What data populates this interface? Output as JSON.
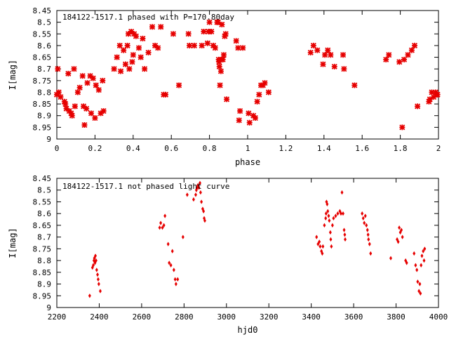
{
  "chart_data": [
    {
      "type": "scatter",
      "title": "184122-1517.1 phased with P=170.80day",
      "xlabel": "phase",
      "ylabel": "I[mag]",
      "xlim": [
        0,
        2
      ],
      "ylim": [
        8.45,
        9.0
      ],
      "y_inverted": true,
      "grid": false,
      "legend": "none",
      "marker": "star",
      "color": "#e60000",
      "xticks": [
        "0",
        "0.2",
        "0.4",
        "0.6",
        "0.8",
        "1",
        "1.2",
        "1.4",
        "1.6",
        "1.8",
        "2"
      ],
      "yticks": [
        "8.45",
        "8.5",
        "8.55",
        "8.6",
        "8.65",
        "8.7",
        "8.75",
        "8.8",
        "8.85",
        "8.9",
        "8.95",
        "9"
      ],
      "points": [
        [
          0.0,
          8.81
        ],
        [
          0.005,
          8.7
        ],
        [
          0.01,
          8.8
        ],
        [
          0.02,
          8.82
        ],
        [
          0.04,
          8.84
        ],
        [
          0.045,
          8.85
        ],
        [
          0.05,
          8.87
        ],
        [
          0.06,
          8.72
        ],
        [
          0.065,
          8.88
        ],
        [
          0.075,
          8.89
        ],
        [
          0.08,
          8.9
        ],
        [
          0.09,
          8.7
        ],
        [
          0.095,
          8.86
        ],
        [
          0.11,
          8.8
        ],
        [
          0.12,
          8.78
        ],
        [
          0.135,
          8.73
        ],
        [
          0.14,
          8.86
        ],
        [
          0.145,
          8.94
        ],
        [
          0.155,
          8.87
        ],
        [
          0.16,
          8.76
        ],
        [
          0.175,
          8.73
        ],
        [
          0.18,
          8.89
        ],
        [
          0.19,
          8.74
        ],
        [
          0.2,
          8.91
        ],
        [
          0.205,
          8.77
        ],
        [
          0.22,
          8.79
        ],
        [
          0.23,
          8.89
        ],
        [
          0.24,
          8.75
        ],
        [
          0.245,
          8.88
        ],
        [
          0.3,
          8.7
        ],
        [
          0.315,
          8.65
        ],
        [
          0.33,
          8.6
        ],
        [
          0.335,
          8.71
        ],
        [
          0.35,
          8.62
        ],
        [
          0.36,
          8.68
        ],
        [
          0.37,
          8.6
        ],
        [
          0.375,
          8.55
        ],
        [
          0.38,
          8.7
        ],
        [
          0.39,
          8.54
        ],
        [
          0.395,
          8.67
        ],
        [
          0.4,
          8.64
        ],
        [
          0.405,
          8.55
        ],
        [
          0.415,
          8.56
        ],
        [
          0.43,
          8.61
        ],
        [
          0.44,
          8.65
        ],
        [
          0.45,
          8.57
        ],
        [
          0.46,
          8.7
        ],
        [
          0.48,
          8.63
        ],
        [
          0.5,
          8.52
        ],
        [
          0.515,
          8.6
        ],
        [
          0.53,
          8.61
        ],
        [
          0.545,
          8.52
        ],
        [
          0.56,
          8.81
        ],
        [
          0.57,
          8.81
        ],
        [
          0.61,
          8.55
        ],
        [
          0.64,
          8.77
        ],
        [
          0.69,
          8.55
        ],
        [
          0.695,
          8.6
        ],
        [
          0.72,
          8.6
        ],
        [
          0.76,
          8.6
        ],
        [
          0.77,
          8.54
        ],
        [
          0.79,
          8.59
        ],
        [
          0.795,
          8.54
        ],
        [
          0.8,
          8.5
        ],
        [
          0.81,
          8.54
        ],
        [
          0.82,
          8.6
        ],
        [
          0.83,
          8.61
        ],
        [
          0.84,
          8.5
        ],
        [
          0.845,
          8.5
        ],
        [
          0.848,
          8.66
        ],
        [
          0.85,
          8.67
        ],
        [
          0.852,
          8.69
        ],
        [
          0.855,
          8.77
        ],
        [
          0.86,
          8.71
        ],
        [
          0.862,
          8.66
        ],
        [
          0.865,
          8.51
        ],
        [
          0.87,
          8.66
        ],
        [
          0.875,
          8.64
        ],
        [
          0.88,
          8.56
        ],
        [
          0.885,
          8.55
        ],
        [
          0.89,
          8.83
        ],
        [
          0.94,
          8.58
        ],
        [
          0.95,
          8.61
        ],
        [
          0.955,
          8.92
        ],
        [
          0.96,
          8.88
        ],
        [
          0.975,
          8.61
        ],
        [
          1.005,
          8.89
        ],
        [
          1.01,
          8.93
        ],
        [
          1.03,
          8.9
        ],
        [
          1.04,
          8.91
        ],
        [
          1.05,
          8.84
        ],
        [
          1.06,
          8.81
        ],
        [
          1.07,
          8.77
        ],
        [
          1.08,
          8.77
        ],
        [
          1.09,
          8.76
        ],
        [
          1.11,
          8.8
        ],
        [
          1.33,
          8.63
        ],
        [
          1.345,
          8.6
        ],
        [
          1.365,
          8.62
        ],
        [
          1.395,
          8.68
        ],
        [
          1.405,
          8.64
        ],
        [
          1.42,
          8.62
        ],
        [
          1.435,
          8.64
        ],
        [
          1.455,
          8.69
        ],
        [
          1.5,
          8.64
        ],
        [
          1.505,
          8.7
        ],
        [
          1.56,
          8.77
        ],
        [
          1.725,
          8.66
        ],
        [
          1.74,
          8.64
        ],
        [
          1.795,
          8.67
        ],
        [
          1.81,
          8.95
        ],
        [
          1.82,
          8.66
        ],
        [
          1.84,
          8.64
        ],
        [
          1.86,
          8.62
        ],
        [
          1.875,
          8.6
        ],
        [
          1.89,
          8.86
        ],
        [
          1.95,
          8.84
        ],
        [
          1.955,
          8.83
        ],
        [
          1.965,
          8.8
        ],
        [
          1.975,
          8.82
        ],
        [
          1.985,
          8.8
        ],
        [
          1.99,
          8.81
        ],
        [
          1.995,
          8.81
        ]
      ]
    },
    {
      "type": "scatter",
      "title": "184122-1517.1 not phased light curve",
      "xlabel": "hjd0",
      "ylabel": "I[mag]",
      "xlim": [
        2200,
        4000
      ],
      "ylim": [
        8.45,
        9.0
      ],
      "y_inverted": true,
      "grid": false,
      "legend": "none",
      "marker": "diamond",
      "color": "#e60000",
      "xticks": [
        "2200",
        "2400",
        "2600",
        "2800",
        "3000",
        "3200",
        "3400",
        "3600",
        "3800",
        "4000"
      ],
      "yticks": [
        "8.45",
        "8.5",
        "8.55",
        "8.6",
        "8.65",
        "8.7",
        "8.75",
        "8.8",
        "8.85",
        "8.9",
        "8.95",
        "9"
      ],
      "points": [
        [
          2355,
          8.95
        ],
        [
          2368,
          8.83
        ],
        [
          2372,
          8.82
        ],
        [
          2375,
          8.8
        ],
        [
          2377,
          8.79
        ],
        [
          2380,
          8.81
        ],
        [
          2382,
          8.78
        ],
        [
          2385,
          8.8
        ],
        [
          2388,
          8.84
        ],
        [
          2392,
          8.86
        ],
        [
          2395,
          8.88
        ],
        [
          2398,
          8.9
        ],
        [
          2405,
          8.93
        ],
        [
          2685,
          8.66
        ],
        [
          2690,
          8.64
        ],
        [
          2698,
          8.66
        ],
        [
          2705,
          8.65
        ],
        [
          2710,
          8.61
        ],
        [
          2725,
          8.73
        ],
        [
          2730,
          8.81
        ],
        [
          2738,
          8.82
        ],
        [
          2745,
          8.76
        ],
        [
          2752,
          8.84
        ],
        [
          2758,
          8.88
        ],
        [
          2762,
          8.9
        ],
        [
          2770,
          8.88
        ],
        [
          2795,
          8.7
        ],
        [
          2815,
          8.52
        ],
        [
          2845,
          8.54
        ],
        [
          2855,
          8.52
        ],
        [
          2858,
          8.5
        ],
        [
          2862,
          8.49
        ],
        [
          2865,
          8.48
        ],
        [
          2870,
          8.49
        ],
        [
          2875,
          8.47
        ],
        [
          2878,
          8.51
        ],
        [
          2882,
          8.55
        ],
        [
          2888,
          8.58
        ],
        [
          2892,
          8.59
        ],
        [
          2895,
          8.62
        ],
        [
          2898,
          8.63
        ],
        [
          3425,
          8.7
        ],
        [
          3432,
          8.73
        ],
        [
          3438,
          8.72
        ],
        [
          3442,
          8.74
        ],
        [
          3448,
          8.76
        ],
        [
          3452,
          8.77
        ],
        [
          3455,
          8.74
        ],
        [
          3462,
          8.65
        ],
        [
          3468,
          8.62
        ],
        [
          3470,
          8.6
        ],
        [
          3472,
          8.55
        ],
        [
          3475,
          8.56
        ],
        [
          3478,
          8.59
        ],
        [
          3482,
          8.61
        ],
        [
          3485,
          8.63
        ],
        [
          3490,
          8.68
        ],
        [
          3492,
          8.71
        ],
        [
          3495,
          8.74
        ],
        [
          3500,
          8.65
        ],
        [
          3505,
          8.62
        ],
        [
          3515,
          8.61
        ],
        [
          3525,
          8.6
        ],
        [
          3535,
          8.59
        ],
        [
          3540,
          8.6
        ],
        [
          3545,
          8.51
        ],
        [
          3550,
          8.6
        ],
        [
          3555,
          8.67
        ],
        [
          3558,
          8.69
        ],
        [
          3560,
          8.71
        ],
        [
          3640,
          8.6
        ],
        [
          3645,
          8.62
        ],
        [
          3650,
          8.64
        ],
        [
          3655,
          8.61
        ],
        [
          3660,
          8.65
        ],
        [
          3665,
          8.67
        ],
        [
          3668,
          8.69
        ],
        [
          3670,
          8.71
        ],
        [
          3675,
          8.73
        ],
        [
          3680,
          8.77
        ],
        [
          3775,
          8.79
        ],
        [
          3805,
          8.71
        ],
        [
          3810,
          8.72
        ],
        [
          3815,
          8.66
        ],
        [
          3820,
          8.68
        ],
        [
          3825,
          8.67
        ],
        [
          3830,
          8.7
        ],
        [
          3845,
          8.8
        ],
        [
          3850,
          8.81
        ],
        [
          3885,
          8.77
        ],
        [
          3892,
          8.82
        ],
        [
          3898,
          8.84
        ],
        [
          3902,
          8.89
        ],
        [
          3908,
          8.93
        ],
        [
          3912,
          8.9
        ],
        [
          3915,
          8.94
        ],
        [
          3918,
          8.82
        ],
        [
          3922,
          8.78
        ],
        [
          3928,
          8.76
        ],
        [
          3932,
          8.8
        ],
        [
          3935,
          8.75
        ]
      ]
    }
  ]
}
